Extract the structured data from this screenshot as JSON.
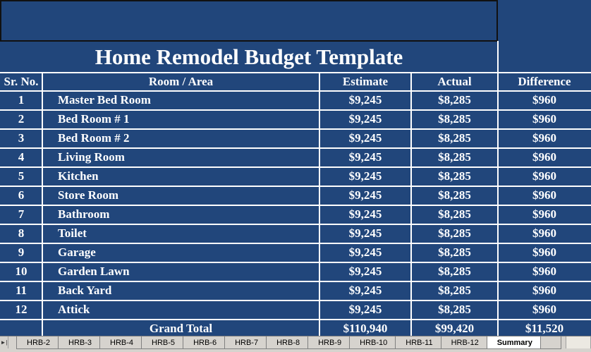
{
  "title": "Home Remodel Budget Template",
  "table": {
    "headers": [
      "Sr. No.",
      "Room / Area",
      "Estimate",
      "Actual",
      "Difference"
    ],
    "rows": [
      [
        "1",
        "Master Bed Room",
        "$9,245",
        "$8,285",
        "$960"
      ],
      [
        "2",
        "Bed Room # 1",
        "$9,245",
        "$8,285",
        "$960"
      ],
      [
        "3",
        "Bed Room # 2",
        "$9,245",
        "$8,285",
        "$960"
      ],
      [
        "4",
        "Living Room",
        "$9,245",
        "$8,285",
        "$960"
      ],
      [
        "5",
        "Kitchen",
        "$9,245",
        "$8,285",
        "$960"
      ],
      [
        "6",
        "Store Room",
        "$9,245",
        "$8,285",
        "$960"
      ],
      [
        "7",
        "Bathroom",
        "$9,245",
        "$8,285",
        "$960"
      ],
      [
        "8",
        "Toilet",
        "$9,245",
        "$8,285",
        "$960"
      ],
      [
        "9",
        "Garage",
        "$9,245",
        "$8,285",
        "$960"
      ],
      [
        "10",
        "Garden Lawn",
        "$9,245",
        "$8,285",
        "$960"
      ],
      [
        "11",
        "Back Yard",
        "$9,245",
        "$8,285",
        "$960"
      ],
      [
        "12",
        "Attick",
        "$9,245",
        "$8,285",
        "$960"
      ]
    ],
    "total": {
      "label": "Grand Total",
      "values": [
        "$110,940",
        "$99,420",
        "$11,520"
      ]
    }
  },
  "sheet_tabs": [
    "HRB-2",
    "HRB-3",
    "HRB-4",
    "HRB-5",
    "HRB-6",
    "HRB-7",
    "HRB-8",
    "HRB-9",
    "HRB-10",
    "HRB-11",
    "HRB-12",
    "Summary"
  ],
  "active_tab": 11
}
